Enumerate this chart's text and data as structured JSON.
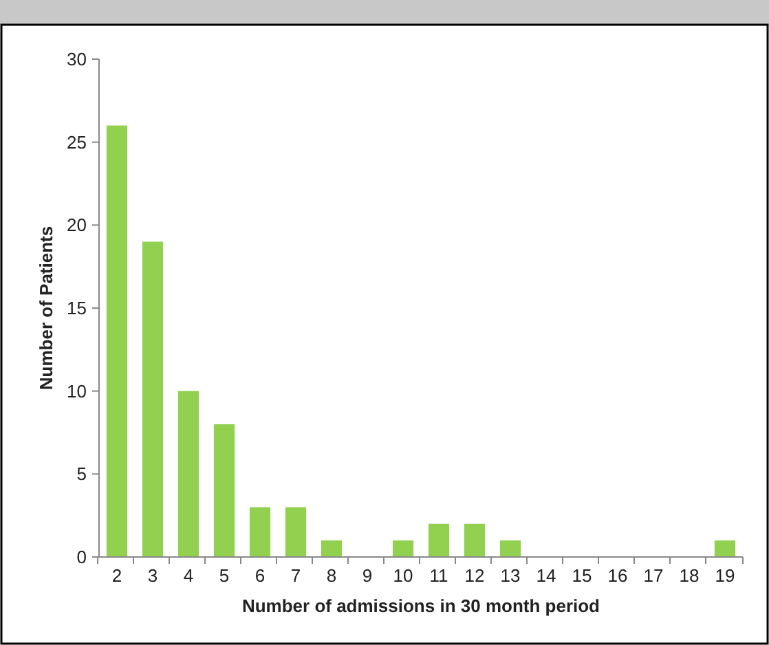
{
  "chart_data": {
    "type": "bar",
    "xlabel": "Number of admissions in 30 month period",
    "ylabel": "Number of Patients",
    "categories": [
      "2",
      "3",
      "4",
      "5",
      "6",
      "7",
      "8",
      "9",
      "10",
      "11",
      "12",
      "13",
      "14",
      "15",
      "16",
      "17",
      "18",
      "19"
    ],
    "values": [
      26,
      19,
      10,
      8,
      3,
      3,
      1,
      0,
      1,
      2,
      2,
      1,
      0,
      0,
      0,
      0,
      0,
      1
    ],
    "color": "#92d050",
    "ylim": [
      0,
      30
    ],
    "yticks": [
      0,
      5,
      10,
      15,
      20,
      25,
      30
    ],
    "grid": false
  }
}
